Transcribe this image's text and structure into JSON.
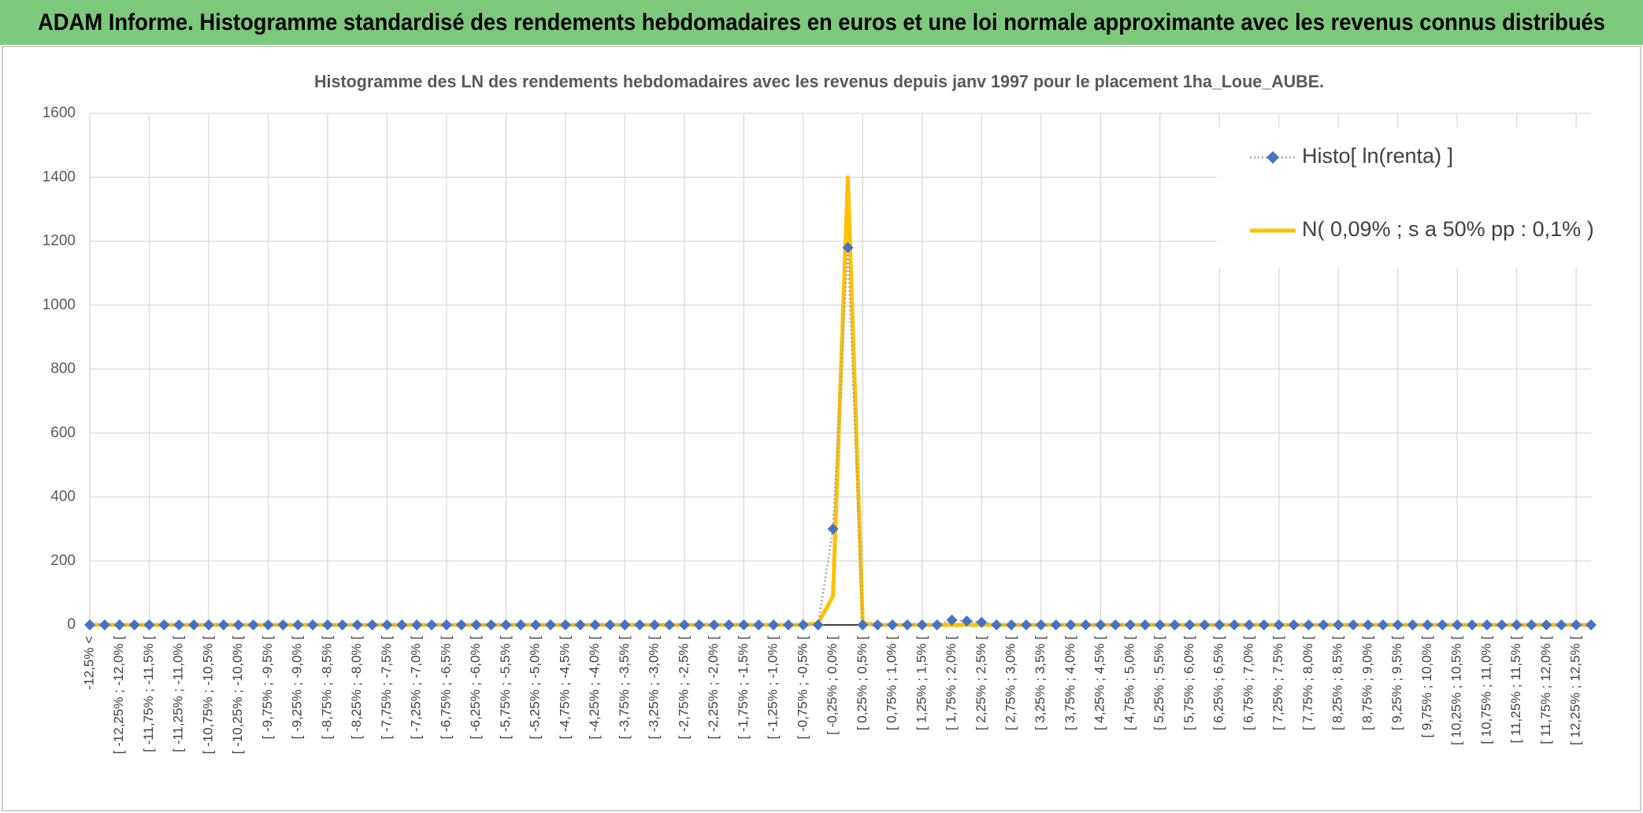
{
  "chart_data": {
    "type": "line",
    "page_title": "ADAM Informe. Histogramme standardisé des rendements hebdomadaires en euros et une loi normale approximante avec les revenus connus distribués",
    "title": "Histogramme des LN des rendements hebdomadaires avec les revenus depuis janv 1997 pour le placement 1ha_Loue_AUBE.",
    "categories": [
      "-12,5% <",
      null,
      "[ -12,25% ; -12,0% [",
      null,
      "[ -11,75% ; -11,5% [",
      null,
      "[ -11,25% ; -11,0% [",
      null,
      "[ -10,75% ; -10,5% [",
      null,
      "[ -10,25% ; -10,0% [",
      null,
      "[ -9,75% ; -9,5% [",
      null,
      "[ -9,25% ; -9,0% [",
      null,
      "[ -8,75% ; -8,5% [",
      null,
      "[ -8,25% ; -8,0% [",
      null,
      "[ -7,75% ; -7,5% [",
      null,
      "[ -7,25% ; -7,0% [",
      null,
      "[ -6,75% ; -6,5% [",
      null,
      "[ -6,25% ; -6,0% [",
      null,
      "[ -5,75% ; -5,5% [",
      null,
      "[ -5,25% ; -5,0% [",
      null,
      "[ -4,75% ; -4,5% [",
      null,
      "[ -4,25% ; -4,0% [",
      null,
      "[ -3,75% ; -3,5% [",
      null,
      "[ -3,25% ; -3,0% [",
      null,
      "[ -2,75% ; -2,5% [",
      null,
      "[ -2,25% ; -2,0% [",
      null,
      "[ -1,75% ; -1,5% [",
      null,
      "[ -1,25% ; -1,0% [",
      null,
      "[ -0,75% ; -0,5% [",
      null,
      "[ -0,25% ; 0,0% [",
      null,
      "[ 0,25% ; 0,5% [",
      null,
      "[ 0,75% ; 1,0% [",
      null,
      "[ 1,25% ; 1,5% [",
      null,
      "[ 1,75% ; 2,0% [",
      null,
      "[ 2,25% ; 2,5% [",
      null,
      "[ 2,75% ; 3,0% [",
      null,
      "[ 3,25% ; 3,5% [",
      null,
      "[ 3,75% ; 4,0% [",
      null,
      "[ 4,25% ; 4,5% [",
      null,
      "[ 4,75% ; 5,0% [",
      null,
      "[ 5,25% ; 5,5% [",
      null,
      "[ 5,75% ; 6,0% [",
      null,
      "[ 6,25% ; 6,5% [",
      null,
      "[ 6,75% ; 7,0% [",
      null,
      "[ 7,25% ; 7,5% [",
      null,
      "[ 7,75% ; 8,0% [",
      null,
      "[ 8,25% ; 8,5% [",
      null,
      "[ 8,75% ; 9,0% [",
      null,
      "[ 9,25% ; 9,5% [",
      null,
      "[ 9,75% ; 10,0% [",
      null,
      "[ 10,25% ; 10,5% [",
      null,
      "[ 10,75% ; 11,0% [",
      null,
      "[ 11,25% ; 11,5% [",
      null,
      "[ 11,75% ; 12,0% [",
      null,
      "[ 12,25% ; 12,5% [",
      null
    ],
    "series": [
      {
        "name": "Histo[ ln(renta) ]",
        "color": "#4472c4",
        "line_color": "#a5a5a5",
        "marker": "diamond",
        "values": [
          0,
          0,
          0,
          0,
          0,
          0,
          0,
          0,
          0,
          0,
          0,
          0,
          0,
          0,
          0,
          0,
          0,
          0,
          0,
          0,
          0,
          0,
          0,
          0,
          0,
          0,
          0,
          0,
          0,
          0,
          0,
          0,
          0,
          0,
          0,
          0,
          0,
          0,
          0,
          0,
          0,
          0,
          0,
          0,
          0,
          0,
          0,
          0,
          0,
          0,
          300,
          1180,
          0,
          0,
          0,
          0,
          0,
          0,
          15,
          12,
          8,
          0,
          0,
          0,
          0,
          0,
          0,
          0,
          0,
          0,
          0,
          0,
          0,
          0,
          0,
          0,
          0,
          0,
          0,
          0,
          0,
          0,
          0,
          0,
          0,
          0,
          0,
          0,
          0,
          0,
          0,
          0,
          0,
          0,
          0,
          0,
          0,
          0,
          0,
          0,
          0,
          0
        ]
      },
      {
        "name": "N( 0,09% ; s a 50% pp : 0,1% )",
        "color": "#ffc000",
        "values": [
          0,
          0,
          0,
          0,
          0,
          0,
          0,
          0,
          0,
          0,
          0,
          0,
          0,
          0,
          0,
          0,
          0,
          0,
          0,
          0,
          0,
          0,
          0,
          0,
          0,
          0,
          0,
          0,
          0,
          0,
          0,
          0,
          0,
          0,
          0,
          0,
          0,
          0,
          0,
          0,
          0,
          0,
          0,
          0,
          0,
          0,
          0,
          0,
          0,
          5,
          90,
          1400,
          5,
          0,
          0,
          0,
          0,
          0,
          0,
          0,
          0,
          0,
          0,
          0,
          0,
          0,
          0,
          0,
          0,
          0,
          0,
          0,
          0,
          0,
          0,
          0,
          0,
          0,
          0,
          0,
          0,
          0,
          0,
          0,
          0,
          0,
          0,
          0,
          0,
          0,
          0,
          0,
          0,
          0,
          0,
          0,
          0,
          0,
          0,
          0,
          0,
          0
        ]
      }
    ],
    "ylim": [
      0,
      1600
    ],
    "yticks": [
      0,
      200,
      400,
      600,
      800,
      1000,
      1200,
      1400,
      1600
    ],
    "grid": true,
    "legend": "upper right"
  }
}
